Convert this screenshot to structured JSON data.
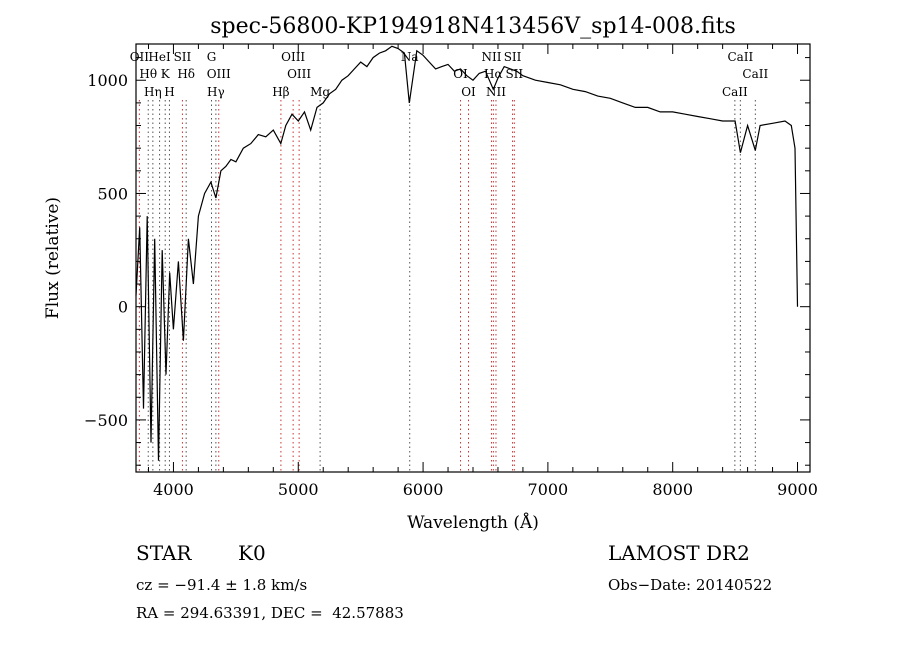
{
  "chart_data": {
    "type": "line",
    "title": "spec-56800-KP194918N413456V_sp14-008.fits",
    "xlabel": "Wavelength (Å)",
    "ylabel": "Flux (relative)",
    "xlim": [
      3700,
      9100
    ],
    "ylim": [
      -730,
      1160
    ],
    "xticks": [
      4000,
      5000,
      6000,
      7000,
      8000,
      9000
    ],
    "yticks": [
      -500,
      0,
      500,
      1000
    ],
    "series": [
      {
        "name": "spectrum",
        "x": [
          3700,
          3730,
          3760,
          3790,
          3820,
          3850,
          3880,
          3910,
          3940,
          3970,
          4000,
          4040,
          4080,
          4120,
          4160,
          4200,
          4250,
          4300,
          4340,
          4380,
          4420,
          4460,
          4500,
          4560,
          4620,
          4680,
          4740,
          4800,
          4860,
          4900,
          4950,
          5000,
          5050,
          5100,
          5150,
          5200,
          5250,
          5300,
          5350,
          5400,
          5450,
          5500,
          5550,
          5600,
          5650,
          5700,
          5750,
          5800,
          5850,
          5890,
          5950,
          6000,
          6050,
          6100,
          6150,
          6200,
          6250,
          6300,
          6350,
          6400,
          6450,
          6500,
          6563,
          6600,
          6650,
          6700,
          6750,
          6800,
          6900,
          7000,
          7100,
          7200,
          7300,
          7400,
          7500,
          7600,
          7700,
          7800,
          7900,
          8000,
          8100,
          8200,
          8300,
          8400,
          8500,
          8542,
          8600,
          8662,
          8700,
          8800,
          8900,
          8950,
          8980,
          9000
        ],
        "values": [
          50,
          350,
          -450,
          400,
          -600,
          300,
          -680,
          250,
          -300,
          150,
          -100,
          200,
          -150,
          300,
          100,
          400,
          500,
          550,
          480,
          600,
          620,
          650,
          640,
          700,
          720,
          760,
          750,
          780,
          720,
          800,
          850,
          820,
          860,
          780,
          880,
          900,
          940,
          960,
          1000,
          1020,
          1050,
          1080,
          1060,
          1100,
          1120,
          1130,
          1150,
          1140,
          1120,
          900,
          1130,
          1110,
          1080,
          1050,
          1060,
          1070,
          1040,
          1050,
          1020,
          1000,
          1030,
          1040,
          960,
          1010,
          1060,
          1050,
          1040,
          1020,
          1000,
          990,
          980,
          960,
          950,
          930,
          920,
          900,
          880,
          880,
          860,
          860,
          850,
          840,
          830,
          820,
          820,
          680,
          800,
          690,
          800,
          810,
          820,
          800,
          700,
          0
        ]
      }
    ],
    "emission_lines": [
      {
        "label": "OII",
        "wave": 3727
      },
      {
        "label": "Hθ",
        "wave": 3798
      },
      {
        "label": "Hη",
        "wave": 3835
      },
      {
        "label": "HeI",
        "wave": 3889
      },
      {
        "label": "K",
        "wave": 3934
      },
      {
        "label": "H",
        "wave": 3968
      },
      {
        "label": "SII",
        "wave": 4072
      },
      {
        "label": "Hδ",
        "wave": 4102
      },
      {
        "label": "Hγ",
        "wave": 4340
      },
      {
        "label": "G",
        "wave": 4305
      },
      {
        "label": "OIII",
        "wave": 4363
      },
      {
        "label": "Hβ",
        "wave": 4861
      },
      {
        "label": "OIII",
        "wave": 4959
      },
      {
        "label": "OIII",
        "wave": 5007
      },
      {
        "label": "Mg",
        "wave": 5175
      },
      {
        "label": "Na",
        "wave": 5893
      },
      {
        "label": "OI",
        "wave": 6300
      },
      {
        "label": "OI",
        "wave": 6364
      },
      {
        "label": "NII",
        "wave": 6548
      },
      {
        "label": "Hα",
        "wave": 6563
      },
      {
        "label": "NII",
        "wave": 6584
      },
      {
        "label": "SII",
        "wave": 6717
      },
      {
        "label": "SII",
        "wave": 6731
      },
      {
        "label": "CaII",
        "wave": 8498
      },
      {
        "label": "CaII",
        "wave": 8542
      },
      {
        "label": "CaII",
        "wave": 8662
      }
    ]
  },
  "info": {
    "class_label": "STAR",
    "subclass": "K0",
    "survey": "LAMOST DR2",
    "cz": "cz = −91.4 ± 1.8 km/s",
    "obs_date": "Obs−Date: 20140522",
    "coords": "RA = 294.63391, DEC =  42.57883"
  },
  "colors": {
    "axis": "#000000",
    "spectrum": "#000000",
    "absorption_line": "#555555",
    "emission_line": "#cc3333"
  }
}
